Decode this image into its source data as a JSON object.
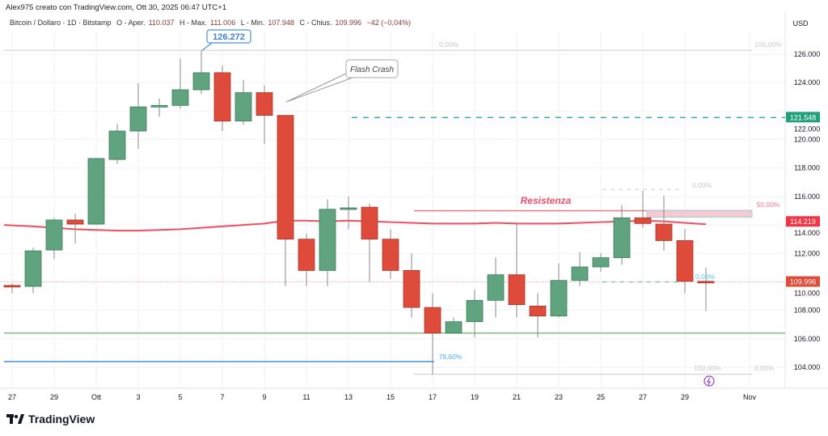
{
  "header": {
    "author_line": "Alex975 creato con TradingView.com, Ott 30, 2025 06:47 UTC+1",
    "symbol": "Bitcoin / Dollaro · 1D · Bitstamp",
    "open_label": "O - Aper.",
    "open": "110.037",
    "high_label": "H - Max.",
    "high": "111.006",
    "low_label": "L - Min.",
    "low": "107.948",
    "close_label": "C - Chius.",
    "close": "109.996",
    "change": "−42 (−0,04%)"
  },
  "price_axis": {
    "currency": "USD",
    "ticks": [
      "126.000",
      "124.000",
      "122.000",
      "120.000",
      "118.000",
      "116.000",
      "114.000",
      "112.000",
      "110.000",
      "108.000",
      "106.000",
      "104.000"
    ],
    "badges": [
      {
        "value": "121.548",
        "color": "#22a07a"
      },
      {
        "value": "114.219",
        "color": "#f23645"
      },
      {
        "value": "109.996",
        "color": "#e04b3a"
      }
    ]
  },
  "time_axis": {
    "ticks": [
      "27",
      "29",
      "Ott",
      "3",
      "5",
      "7",
      "9",
      "11",
      "13",
      "15",
      "17",
      "19",
      "21",
      "23",
      "25",
      "27",
      "29",
      "Nov"
    ]
  },
  "annotations": {
    "ath_label": "126.272",
    "flash_crash": "Flash Crash",
    "resistance": "Resistenza",
    "fib_labels": [
      "0,00%",
      "100,00%",
      "0,00%",
      "50,00%",
      "0,00%",
      "78,60%",
      "100,00%",
      "0,00%"
    ]
  },
  "colors": {
    "up": "#5fa37f",
    "down": "#de4b3a",
    "ma": "#f0505e",
    "support": "#7bc47f",
    "fib_blue": "#4a90d9",
    "teal": "#3cb5a0",
    "accent_purple": "#9c3fc8"
  },
  "logo": "TradingView",
  "chart_data": {
    "type": "candlestick",
    "timeframe": "1D",
    "ylim": [
      103000,
      127500
    ],
    "candles": [
      {
        "date": "Sep 27",
        "o": 109.75,
        "h": 109.9,
        "l": 109.2,
        "c": 109.7
      },
      {
        "date": "Sep 28",
        "o": 109.68,
        "h": 112.4,
        "l": 109.2,
        "c": 112.18
      },
      {
        "date": "Sep 29",
        "o": 112.24,
        "h": 114.5,
        "l": 111.6,
        "c": 114.35
      },
      {
        "date": "Sep 30",
        "o": 114.35,
        "h": 114.8,
        "l": 112.7,
        "c": 114.06
      },
      {
        "date": "Oct 1",
        "o": 114.06,
        "h": 118.7,
        "l": 114.0,
        "c": 118.67
      },
      {
        "date": "Oct 2",
        "o": 118.6,
        "h": 121.1,
        "l": 118.3,
        "c": 120.6
      },
      {
        "date": "Oct 3",
        "o": 120.6,
        "h": 123.95,
        "l": 119.35,
        "c": 122.3
      },
      {
        "date": "Oct 4",
        "o": 122.3,
        "h": 122.9,
        "l": 121.6,
        "c": 122.4
      },
      {
        "date": "Oct 5",
        "o": 122.4,
        "h": 125.7,
        "l": 122.2,
        "c": 123.5
      },
      {
        "date": "Oct 6",
        "o": 123.5,
        "h": 126.272,
        "l": 123.2,
        "c": 124.7
      },
      {
        "date": "Oct 7",
        "o": 124.7,
        "h": 125.2,
        "l": 120.6,
        "c": 121.3
      },
      {
        "date": "Oct 8",
        "o": 121.3,
        "h": 124.2,
        "l": 121.05,
        "c": 123.3
      },
      {
        "date": "Oct 9",
        "o": 123.3,
        "h": 123.8,
        "l": 119.7,
        "c": 121.7
      },
      {
        "date": "Oct 10",
        "o": 121.7,
        "h": 121.7,
        "l": 109.7,
        "c": 113.0
      },
      {
        "date": "Oct 11",
        "o": 113.0,
        "h": 113.4,
        "l": 109.7,
        "c": 110.8
      },
      {
        "date": "Oct 12",
        "o": 110.8,
        "h": 115.8,
        "l": 109.7,
        "c": 115.1
      },
      {
        "date": "Oct 13",
        "o": 115.1,
        "h": 116.0,
        "l": 113.7,
        "c": 115.2
      },
      {
        "date": "Oct 14",
        "o": 115.25,
        "h": 115.5,
        "l": 110.0,
        "c": 113.0
      },
      {
        "date": "Oct 15",
        "o": 113.0,
        "h": 113.7,
        "l": 110.2,
        "c": 110.8
      },
      {
        "date": "Oct 16",
        "o": 110.8,
        "h": 112.0,
        "l": 107.5,
        "c": 108.2
      },
      {
        "date": "Oct 17",
        "o": 108.2,
        "h": 109.2,
        "l": 103.5,
        "c": 106.4
      },
      {
        "date": "Oct 18",
        "o": 106.4,
        "h": 107.5,
        "l": 106.4,
        "c": 107.2
      },
      {
        "date": "Oct 19",
        "o": 107.2,
        "h": 109.45,
        "l": 106.1,
        "c": 108.7
      },
      {
        "date": "Oct 20",
        "o": 108.7,
        "h": 111.7,
        "l": 107.5,
        "c": 110.5
      },
      {
        "date": "Oct 21",
        "o": 110.5,
        "h": 114.1,
        "l": 107.5,
        "c": 108.4
      },
      {
        "date": "Oct 22",
        "o": 108.3,
        "h": 109.2,
        "l": 106.1,
        "c": 107.6
      },
      {
        "date": "Oct 23",
        "o": 107.6,
        "h": 111.3,
        "l": 107.5,
        "c": 110.1
      },
      {
        "date": "Oct 24",
        "o": 110.1,
        "h": 112.1,
        "l": 109.7,
        "c": 111.05
      },
      {
        "date": "Oct 25",
        "o": 111.05,
        "h": 112.0,
        "l": 110.7,
        "c": 111.7
      },
      {
        "date": "Oct 26",
        "o": 111.7,
        "h": 115.4,
        "l": 111.2,
        "c": 114.5
      },
      {
        "date": "Oct 27",
        "o": 114.5,
        "h": 116.4,
        "l": 113.8,
        "c": 114.1
      },
      {
        "date": "Oct 28",
        "o": 114.06,
        "h": 116.05,
        "l": 112.2,
        "c": 112.9
      },
      {
        "date": "Oct 29",
        "o": 112.9,
        "h": 113.7,
        "l": 109.2,
        "c": 110.04
      },
      {
        "date": "Oct 30",
        "o": 110.037,
        "h": 111.006,
        "l": 107.948,
        "c": 109.996
      }
    ],
    "moving_average": [
      114.0,
      113.9,
      113.8,
      113.7,
      113.65,
      113.6,
      113.6,
      113.65,
      113.7,
      113.8,
      113.9,
      114.0,
      114.1,
      114.3,
      114.3,
      114.25,
      114.3,
      114.25,
      114.2,
      114.15,
      114.1,
      114.1,
      114.1,
      114.15,
      114.1,
      114.1,
      114.1,
      114.15,
      114.2,
      114.25,
      114.3,
      114.25,
      114.15,
      114.05
    ],
    "levels": {
      "ath": 126.272,
      "dashed_teal": 121.548,
      "resistance": 115.0,
      "support": 106.4,
      "fib_786": 104.4,
      "fib_low": 103.5
    }
  }
}
